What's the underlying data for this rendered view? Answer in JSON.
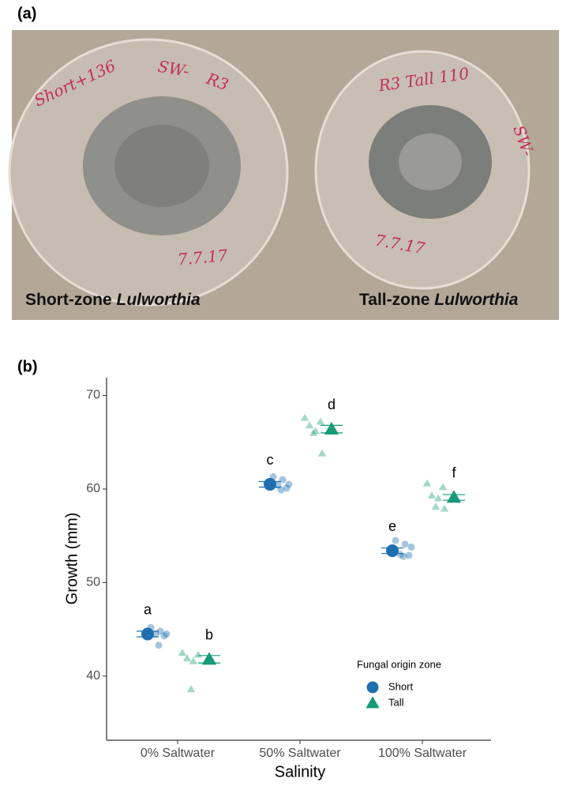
{
  "panel_a": {
    "label": "(a)",
    "handwriting": [
      "Short+136",
      "SW-",
      "R3",
      "7.7.17",
      "R3 Tall 110",
      "SW-",
      "7.7.17"
    ],
    "captions": [
      {
        "prefix": "Short-zone ",
        "genus": "Lulworthia"
      },
      {
        "prefix": "Tall-zone ",
        "genus": "Lulworthia"
      }
    ]
  },
  "chart_data": {
    "type": "scatter",
    "panel_label": "(b)",
    "x_label": "Salinity",
    "y_label": "Growth (mm)",
    "categories": [
      "0% Saltwater",
      "50% Saltwater",
      "100% Saltwater"
    ],
    "ylim": [
      33.15,
      71.9
    ],
    "yticks": [
      40,
      50,
      60,
      70
    ],
    "grid": false,
    "legend": {
      "title": "Fungal origin zone",
      "position": "bottom-right"
    },
    "series": [
      {
        "name": "Short",
        "color": "#1f6fb0",
        "marker": "circle",
        "values": [
          44.5,
          60.5,
          53.4
        ],
        "errors": [
          0.3,
          0.3,
          0.3
        ],
        "letters": [
          "a",
          "c",
          "e"
        ],
        "points": [
          [
            45.2,
            44.8,
            44.5,
            44.5,
            44.3,
            43.3
          ],
          [
            61.3,
            61.0,
            60.5,
            60.4,
            60.1,
            59.9
          ],
          [
            54.5,
            54.1,
            53.8,
            53.0,
            52.9,
            52.8
          ]
        ]
      },
      {
        "name": "Tall",
        "color": "#169a78",
        "marker": "triangle",
        "values": [
          41.8,
          66.4,
          59.1
        ],
        "errors": [
          0.4,
          0.4,
          0.3
        ],
        "letters": [
          "b",
          "d",
          "f"
        ],
        "points": [
          [
            42.5,
            42.3,
            41.9,
            41.6,
            38.6
          ],
          [
            67.6,
            67.2,
            66.8,
            66.2,
            66.0,
            63.8
          ],
          [
            60.6,
            60.2,
            59.3,
            59.0,
            58.1,
            57.9
          ]
        ]
      }
    ]
  }
}
